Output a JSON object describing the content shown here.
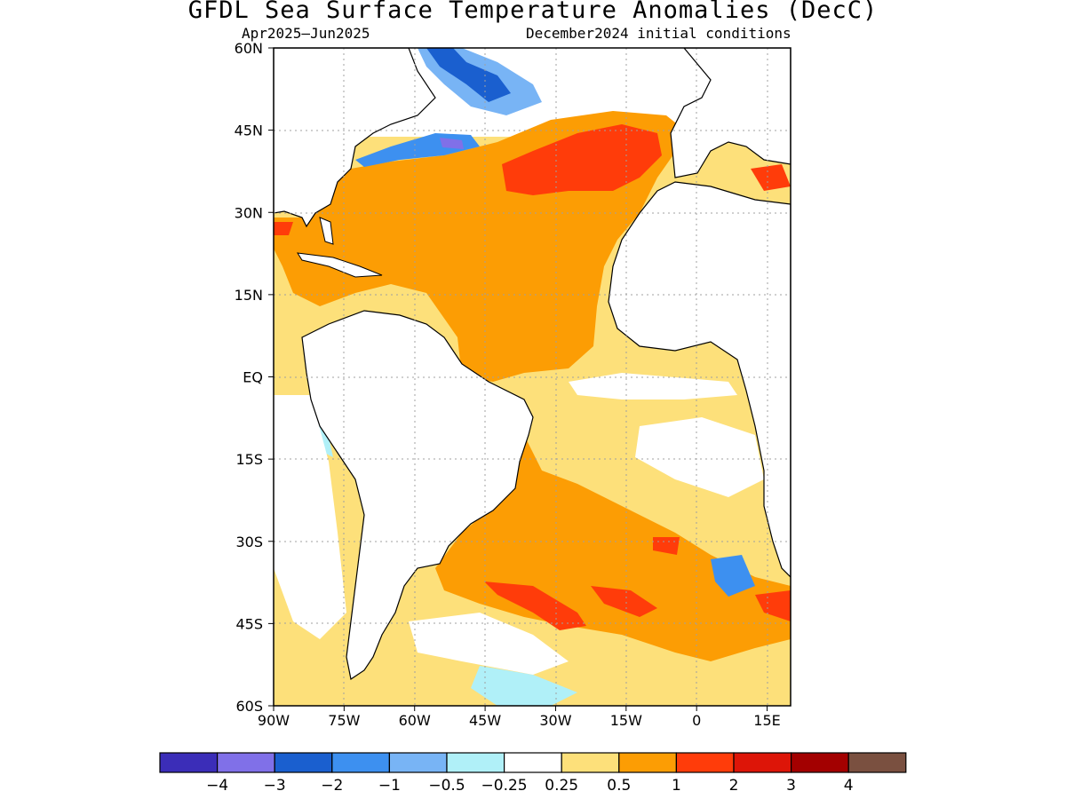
{
  "title": "GFDL Sea Surface Temperature Anomalies (DecC)",
  "subtitle_left": "Apr2025–Jun2025",
  "subtitle_right": "December2024 initial conditions",
  "map": {
    "lon_range": [
      -90,
      20
    ],
    "lat_range": [
      -60,
      60
    ],
    "lat_ticks": [
      {
        "value": 60,
        "label": "60N"
      },
      {
        "value": 45,
        "label": "45N"
      },
      {
        "value": 30,
        "label": "30N"
      },
      {
        "value": 15,
        "label": "15N"
      },
      {
        "value": 0,
        "label": "EQ"
      },
      {
        "value": -15,
        "label": "15S"
      },
      {
        "value": -30,
        "label": "30S"
      },
      {
        "value": -45,
        "label": "45S"
      },
      {
        "value": -60,
        "label": "60S"
      }
    ],
    "lon_ticks": [
      {
        "value": -90,
        "label": "90W"
      },
      {
        "value": -75,
        "label": "75W"
      },
      {
        "value": -60,
        "label": "60W"
      },
      {
        "value": -45,
        "label": "45W"
      },
      {
        "value": -30,
        "label": "30W"
      },
      {
        "value": -15,
        "label": "15W"
      },
      {
        "value": 0,
        "label": "0"
      },
      {
        "value": 15,
        "label": "15E"
      }
    ],
    "grid": true
  },
  "colorbar": {
    "colors": [
      "#3b2db8",
      "#8070e8",
      "#1a5fcf",
      "#3d90f0",
      "#78b4f5",
      "#b0f0f8",
      "#ffffff",
      "#fde07a",
      "#fc9d04",
      "#ff3c0a",
      "#dd1508",
      "#a30000",
      "#7a5040"
    ],
    "labels": [
      "−4",
      "−3",
      "−2",
      "−1",
      "−0.5",
      "−0.25",
      "0.25",
      "0.5",
      "1",
      "2",
      "3",
      "4"
    ]
  },
  "colors": {
    "land": "#ffffff",
    "coast": "#000000"
  }
}
